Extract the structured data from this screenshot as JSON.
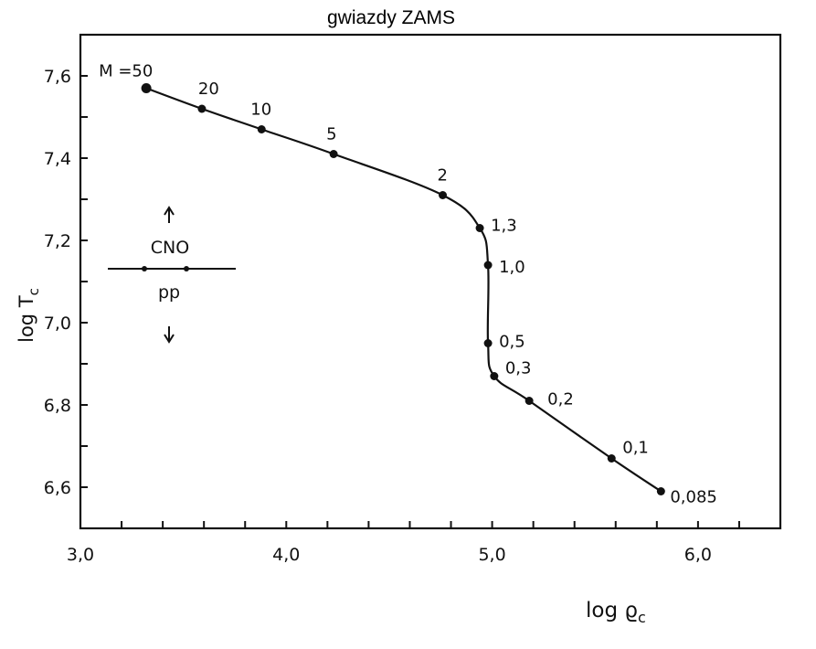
{
  "chart_data": {
    "type": "line",
    "title": "gwiazdy ZAMS",
    "xlabel": "log ϱ",
    "xlabel_sub": "c",
    "ylabel": "log T",
    "ylabel_sub": "c",
    "xlim": [
      3.0,
      6.4
    ],
    "ylim": [
      6.5,
      7.7
    ],
    "xticks": [
      3.0,
      4.0,
      5.0,
      6.0
    ],
    "xtick_labels": [
      "3,0",
      "4,0",
      "5,0",
      "6,0"
    ],
    "yticks": [
      6.6,
      6.8,
      7.0,
      7.2,
      7.4,
      7.6
    ],
    "ytick_labels": [
      "6,6",
      "6,8",
      "7,0",
      "7,2",
      "7,4",
      "7,6"
    ],
    "grid": false,
    "points": [
      {
        "label": "M =50",
        "x": 3.32,
        "y": 7.57
      },
      {
        "label": "20",
        "x": 3.59,
        "y": 7.52
      },
      {
        "label": "10",
        "x": 3.88,
        "y": 7.47
      },
      {
        "label": "5",
        "x": 4.23,
        "y": 7.41
      },
      {
        "label": "2",
        "x": 4.76,
        "y": 7.31
      },
      {
        "label": "1,3",
        "x": 4.94,
        "y": 7.23
      },
      {
        "label": "1,0",
        "x": 4.98,
        "y": 7.14
      },
      {
        "label": "0,5",
        "x": 4.98,
        "y": 6.95
      },
      {
        "label": "0,3",
        "x": 5.01,
        "y": 6.87
      },
      {
        "label": "0,2",
        "x": 5.18,
        "y": 6.81
      },
      {
        "label": "0,1",
        "x": 5.58,
        "y": 6.67
      },
      {
        "label": "0,085",
        "x": 5.82,
        "y": 6.59
      }
    ],
    "annotation": {
      "upper": "CNO",
      "lower": "pp"
    }
  }
}
